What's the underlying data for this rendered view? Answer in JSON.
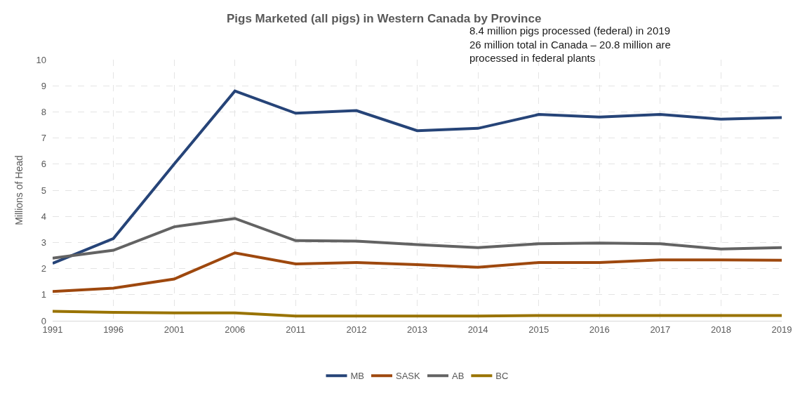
{
  "chart_data": {
    "type": "line",
    "title": "Pigs Marketed (all pigs) in Western Canada by Province",
    "ylabel": "Millions of Head",
    "annotations": [
      "8.4 million pigs processed (federal) in 2019\n26 million total in Canada – 20.8 million are\nprocessed in federal plants"
    ],
    "categories": [
      "1991",
      "1996",
      "2001",
      "2006",
      "2011",
      "2012",
      "2013",
      "2014",
      "2015",
      "2016",
      "2017",
      "2018",
      "2019"
    ],
    "series": [
      {
        "name": "MB",
        "color": "#264478",
        "values": [
          2.2,
          3.15,
          6.0,
          8.8,
          7.95,
          8.05,
          7.28,
          7.37,
          7.9,
          7.8,
          7.9,
          7.72,
          7.78
        ]
      },
      {
        "name": "SASK",
        "color": "#9e480e",
        "values": [
          1.12,
          1.25,
          1.6,
          2.6,
          2.18,
          2.23,
          2.15,
          2.05,
          2.23,
          2.23,
          2.33,
          2.33,
          2.32
        ]
      },
      {
        "name": "AB",
        "color": "#636363",
        "values": [
          2.4,
          2.7,
          3.6,
          3.92,
          3.07,
          3.05,
          2.92,
          2.8,
          2.95,
          2.98,
          2.95,
          2.75,
          2.8
        ]
      },
      {
        "name": "BC",
        "color": "#997300",
        "values": [
          0.36,
          0.32,
          0.3,
          0.3,
          0.18,
          0.18,
          0.18,
          0.18,
          0.2,
          0.2,
          0.2,
          0.2,
          0.2
        ]
      }
    ],
    "ylim": [
      0,
      10
    ],
    "yticks": [
      0,
      1,
      2,
      3,
      4,
      5,
      6,
      7,
      8,
      9,
      10
    ],
    "grid": true,
    "legend": "bottom",
    "marker": "none",
    "line_style": "solid"
  }
}
